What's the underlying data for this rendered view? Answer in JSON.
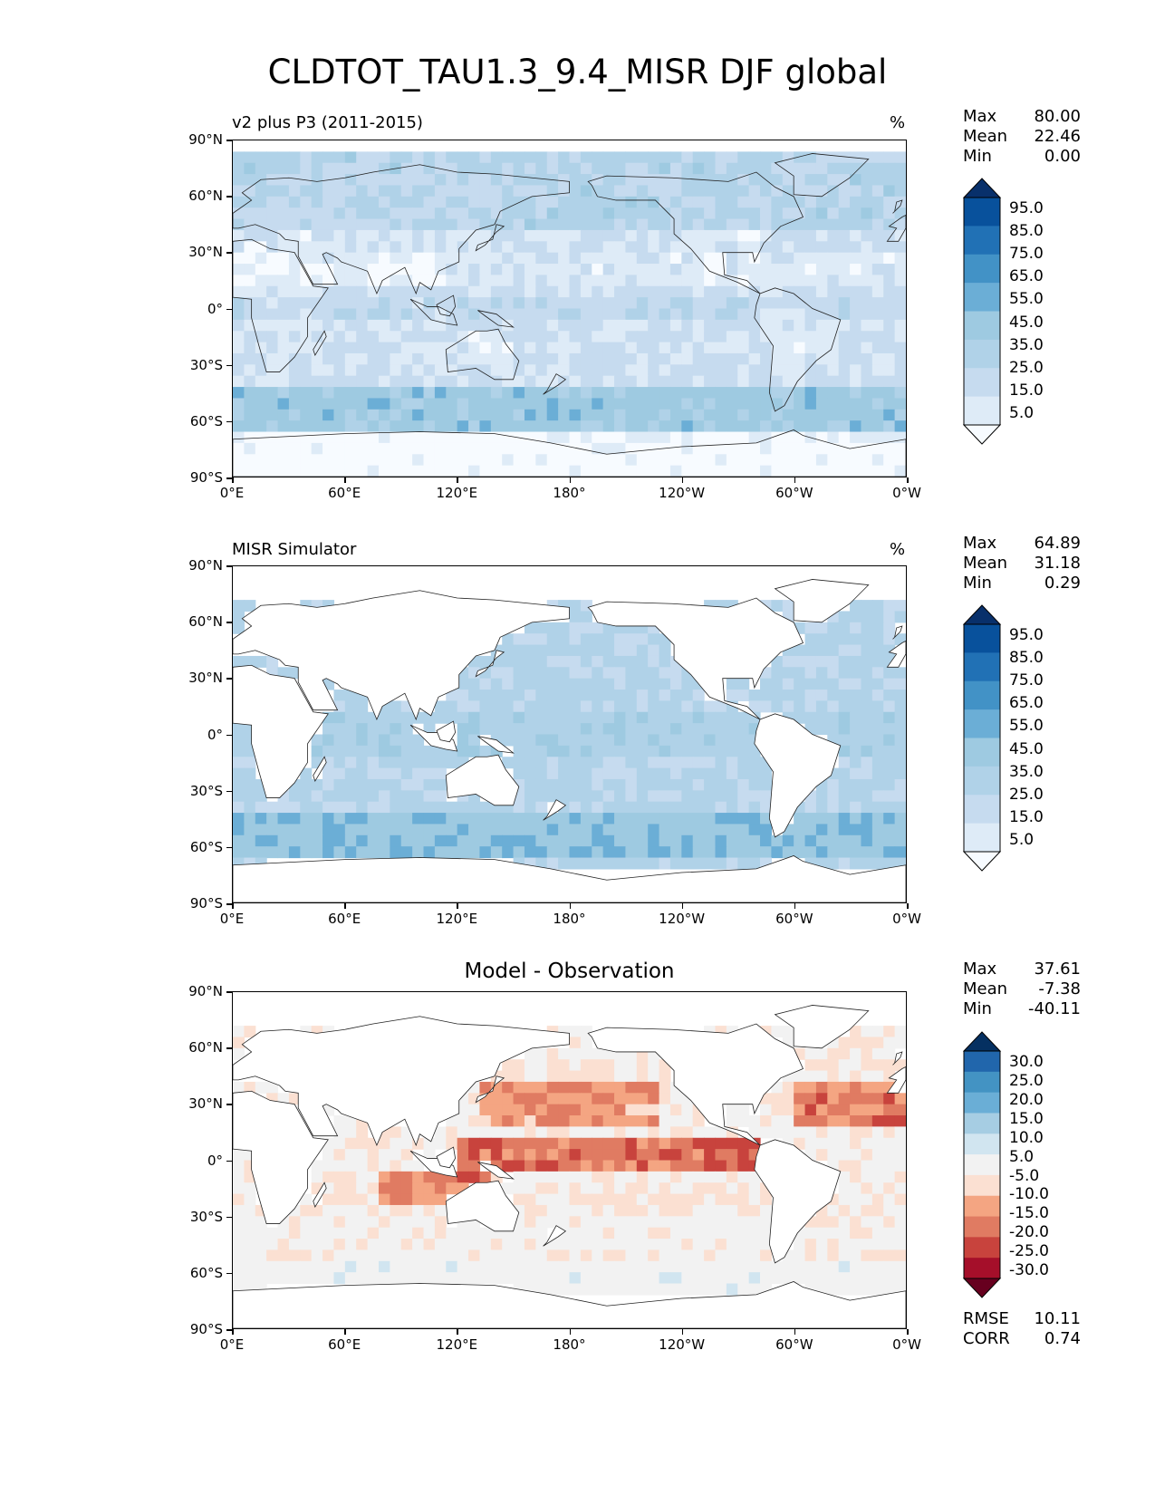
{
  "figure": {
    "title": "CLDTOT_TAU1.3_9.4_MISR DJF global"
  },
  "axes": {
    "lat_ticks": [
      "90°N",
      "60°N",
      "30°N",
      "0°",
      "30°S",
      "60°S",
      "90°S"
    ],
    "lon_ticks": [
      "0°E",
      "60°E",
      "120°E",
      "180°",
      "120°W",
      "60°W",
      "0°W"
    ]
  },
  "panels": [
    {
      "title_left": "v2 plus P3 (2011-2015)",
      "title_center": "",
      "units": "%",
      "stats": [
        {
          "label": "Max",
          "value": "80.00"
        },
        {
          "label": "Mean",
          "value": "22.46"
        },
        {
          "label": "Min",
          "value": "0.00"
        }
      ],
      "colorbar": {
        "labels": [
          "95.0",
          "85.0",
          "75.0",
          "65.0",
          "55.0",
          "45.0",
          "35.0",
          "25.0",
          "15.0",
          "5.0"
        ],
        "colors": [
          "#08306b",
          "#08519c",
          "#2171b5",
          "#4292c6",
          "#6baed6",
          "#9ecae1",
          "#b0d2e8",
          "#c6dbef",
          "#deebf7",
          "#f7fbff"
        ]
      },
      "field": "model"
    },
    {
      "title_left": "MISR Simulator",
      "title_center": "",
      "units": "%",
      "stats": [
        {
          "label": "Max",
          "value": "64.89"
        },
        {
          "label": "Mean",
          "value": "31.18"
        },
        {
          "label": "Min",
          "value": "0.29"
        }
      ],
      "colorbar": {
        "labels": [
          "95.0",
          "85.0",
          "75.0",
          "65.0",
          "55.0",
          "45.0",
          "35.0",
          "25.0",
          "15.0",
          "5.0"
        ],
        "colors": [
          "#08306b",
          "#08519c",
          "#2171b5",
          "#4292c6",
          "#6baed6",
          "#9ecae1",
          "#b0d2e8",
          "#c6dbef",
          "#deebf7",
          "#f7fbff"
        ]
      },
      "field": "obs"
    },
    {
      "title_left": "",
      "title_center": "Model - Observation",
      "units": "",
      "stats": [
        {
          "label": "Max",
          "value": "37.61"
        },
        {
          "label": "Mean",
          "value": "-7.38"
        },
        {
          "label": "Min",
          "value": "-40.11"
        }
      ],
      "colorbar": {
        "labels": [
          "30.0",
          "25.0",
          "20.0",
          "15.0",
          "10.0",
          "5.0",
          "-5.0",
          "-10.0",
          "-15.0",
          "-20.0",
          "-25.0",
          "-30.0"
        ],
        "colors": [
          "#053061",
          "#2166ac",
          "#4393c3",
          "#6aaed6",
          "#a6cde3",
          "#d1e5f0",
          "#f2f2f2",
          "#fbe0d2",
          "#f4a582",
          "#e07b62",
          "#c8433d",
          "#a50f2a",
          "#67001f"
        ]
      },
      "field": "diff",
      "footer_stats": [
        {
          "label": "RMSE",
          "value": "10.11"
        },
        {
          "label": "CORR",
          "value": "0.74"
        }
      ]
    }
  ]
}
